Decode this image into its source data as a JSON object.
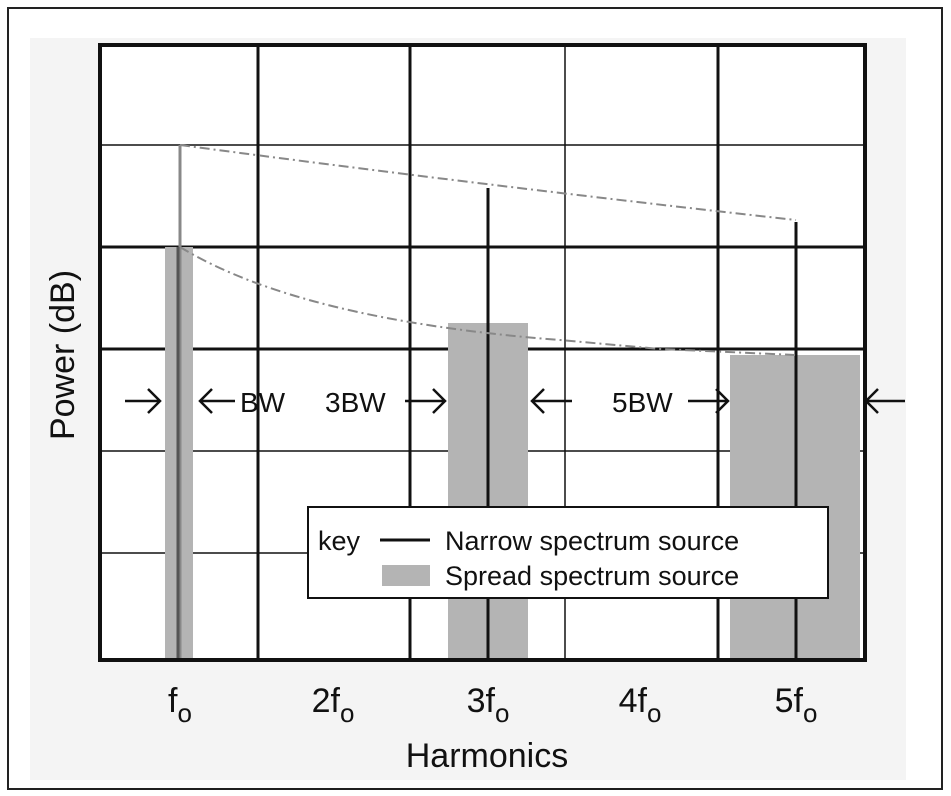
{
  "axes": {
    "y_label": "Power (dB)",
    "x_label": "Harmonics"
  },
  "harmonics": [
    {
      "main": "f",
      "sub": "o"
    },
    {
      "main": "2f",
      "sub": "o"
    },
    {
      "main": "3f",
      "sub": "o"
    },
    {
      "main": "4f",
      "sub": "o"
    },
    {
      "main": "5f",
      "sub": "o"
    }
  ],
  "annotations": [
    "BW",
    "3BW",
    "5BW"
  ],
  "legend": {
    "title": "key",
    "items": [
      "Narrow spectrum source",
      "Spread spectrum source"
    ]
  }
}
